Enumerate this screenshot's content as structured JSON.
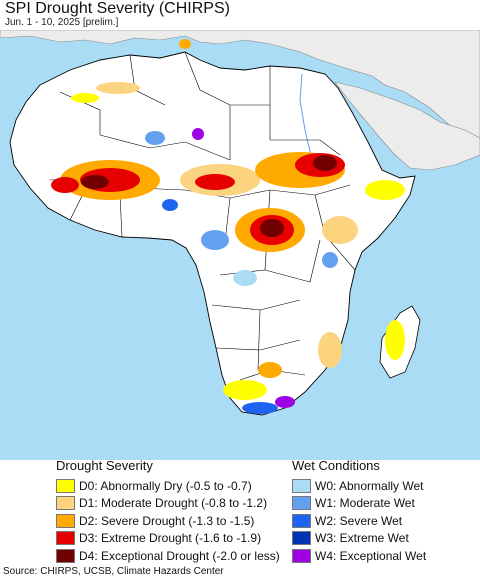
{
  "title": "SPI Drought Severity (CHIRPS)",
  "subtitle": "Jun. 1 - 10, 2025 [prelim.]",
  "legend_drought": {
    "heading": "Drought Severity",
    "items": [
      {
        "label": "D0: Abnormally Dry (-0.5 to -0.7)",
        "color": "#ffff00"
      },
      {
        "label": "D1: Moderate Drought (-0.8 to -1.2)",
        "color": "#fcd37f"
      },
      {
        "label": "D2: Severe Drought (-1.3 to -1.5)",
        "color": "#ffaa00"
      },
      {
        "label": "D3: Extreme Drought (-1.6 to -1.9)",
        "color": "#e60000"
      },
      {
        "label": "D4: Exceptional Drought (-2.0 or less)",
        "color": "#730000"
      }
    ]
  },
  "legend_wet": {
    "heading": "Wet Conditions",
    "items": [
      {
        "label": "W0: Abnormally Wet",
        "color": "#aadcf5"
      },
      {
        "label": "W1: Moderate Wet",
        "color": "#64a0f0"
      },
      {
        "label": "W2: Severe Wet",
        "color": "#1e64f0"
      },
      {
        "label": "W3: Extreme Wet",
        "color": "#0032b4"
      },
      {
        "label": "W4: Exceptional Wet",
        "color": "#a000e6"
      }
    ]
  },
  "map_colors": {
    "ocean": "#aadcf5",
    "land": "#ffffff",
    "outside": "#ececec",
    "border": "#000000"
  },
  "source": "Source: CHIRPS, UCSB, Climate Hazards Center"
}
